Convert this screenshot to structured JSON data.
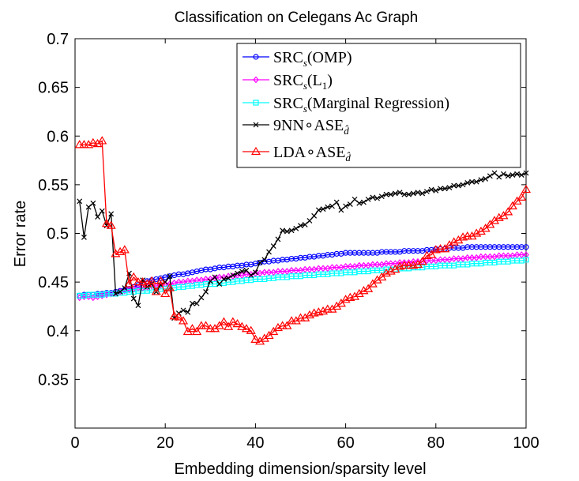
{
  "chart_data": {
    "type": "line",
    "title": "Classification on Celegans Ac Graph",
    "xlabel": "Embedding dimension/sparsity level",
    "ylabel": "Error rate",
    "xlim": [
      0,
      100
    ],
    "ylim": [
      0.3,
      0.7
    ],
    "xticks": [
      0,
      20,
      40,
      60,
      80,
      100
    ],
    "yticks": [
      0.35,
      0.4,
      0.45,
      0.5,
      0.55,
      0.6,
      0.65,
      0.7
    ],
    "x_tick_labels": [
      "0",
      "20",
      "40",
      "60",
      "80",
      "100"
    ],
    "y_tick_labels": [
      "0.35",
      "0.4",
      "0.45",
      "0.5",
      "0.55",
      "0.6",
      "0.65",
      "0.7"
    ],
    "grid": false,
    "legend_position": "top-right",
    "series": [
      {
        "name": "SRCs(OMP)",
        "legend_main": "SRC",
        "legend_sub": "s",
        "legend_rest": "(OMP)",
        "color": "#0000ff",
        "marker": "circle",
        "x": [
          1,
          2,
          3,
          4,
          5,
          6,
          7,
          8,
          9,
          10,
          11,
          12,
          13,
          14,
          15,
          16,
          17,
          18,
          19,
          20,
          21,
          22,
          23,
          24,
          25,
          26,
          27,
          28,
          29,
          30,
          31,
          32,
          33,
          34,
          35,
          36,
          37,
          38,
          39,
          40,
          41,
          42,
          43,
          44,
          45,
          46,
          47,
          48,
          49,
          50,
          51,
          52,
          53,
          54,
          55,
          56,
          57,
          58,
          59,
          60,
          61,
          62,
          63,
          64,
          65,
          66,
          67,
          68,
          69,
          70,
          71,
          72,
          73,
          74,
          75,
          76,
          77,
          78,
          79,
          80,
          81,
          82,
          83,
          84,
          85,
          86,
          87,
          88,
          89,
          90,
          91,
          92,
          93,
          94,
          95,
          96,
          97,
          98,
          99,
          100
        ],
        "y": [
          0.436,
          0.437,
          0.437,
          0.437,
          0.438,
          0.438,
          0.439,
          0.439,
          0.44,
          0.441,
          0.442,
          0.443,
          0.445,
          0.447,
          0.449,
          0.451,
          0.452,
          0.453,
          0.454,
          0.455,
          0.456,
          0.457,
          0.458,
          0.458,
          0.459,
          0.46,
          0.461,
          0.462,
          0.463,
          0.463,
          0.464,
          0.465,
          0.465,
          0.466,
          0.466,
          0.467,
          0.467,
          0.468,
          0.468,
          0.469,
          0.47,
          0.471,
          0.471,
          0.472,
          0.472,
          0.473,
          0.473,
          0.474,
          0.474,
          0.475,
          0.475,
          0.476,
          0.476,
          0.477,
          0.477,
          0.478,
          0.478,
          0.479,
          0.479,
          0.48,
          0.48,
          0.48,
          0.48,
          0.48,
          0.48,
          0.48,
          0.48,
          0.481,
          0.481,
          0.481,
          0.481,
          0.481,
          0.482,
          0.482,
          0.482,
          0.482,
          0.482,
          0.483,
          0.483,
          0.484,
          0.484,
          0.484,
          0.485,
          0.485,
          0.485,
          0.485,
          0.486,
          0.486,
          0.486,
          0.486,
          0.486,
          0.486,
          0.486,
          0.486,
          0.486,
          0.486,
          0.486,
          0.486,
          0.486,
          0.486
        ]
      },
      {
        "name": "SRCs(L1)",
        "legend_main": "SRC",
        "legend_sub": "s",
        "legend_rest": "(L",
        "legend_rest_sub": "1",
        "legend_rest_end": ")",
        "color": "#ff00ff",
        "marker": "diamond",
        "x": [
          1,
          2,
          3,
          4,
          5,
          6,
          7,
          8,
          9,
          10,
          11,
          12,
          13,
          14,
          15,
          16,
          17,
          18,
          19,
          20,
          21,
          22,
          23,
          24,
          25,
          26,
          27,
          28,
          29,
          30,
          31,
          32,
          33,
          34,
          35,
          36,
          37,
          38,
          39,
          40,
          41,
          42,
          43,
          44,
          45,
          46,
          47,
          48,
          49,
          50,
          51,
          52,
          53,
          54,
          55,
          56,
          57,
          58,
          59,
          60,
          61,
          62,
          63,
          64,
          65,
          66,
          67,
          68,
          69,
          70,
          71,
          72,
          73,
          74,
          75,
          76,
          77,
          78,
          79,
          80,
          81,
          82,
          83,
          84,
          85,
          86,
          87,
          88,
          89,
          90,
          91,
          92,
          93,
          94,
          95,
          96,
          97,
          98,
          99,
          100
        ],
        "y": [
          0.434,
          0.435,
          0.435,
          0.434,
          0.435,
          0.436,
          0.437,
          0.438,
          0.439,
          0.44,
          0.441,
          0.442,
          0.443,
          0.444,
          0.444,
          0.445,
          0.446,
          0.446,
          0.447,
          0.448,
          0.448,
          0.449,
          0.45,
          0.45,
          0.451,
          0.451,
          0.452,
          0.452,
          0.453,
          0.453,
          0.454,
          0.455,
          0.455,
          0.456,
          0.456,
          0.457,
          0.457,
          0.458,
          0.458,
          0.459,
          0.459,
          0.46,
          0.46,
          0.46,
          0.461,
          0.461,
          0.461,
          0.462,
          0.462,
          0.462,
          0.463,
          0.463,
          0.463,
          0.464,
          0.464,
          0.464,
          0.465,
          0.465,
          0.465,
          0.466,
          0.466,
          0.466,
          0.467,
          0.467,
          0.467,
          0.468,
          0.468,
          0.468,
          0.469,
          0.469,
          0.469,
          0.47,
          0.47,
          0.47,
          0.471,
          0.471,
          0.471,
          0.472,
          0.472,
          0.472,
          0.473,
          0.473,
          0.473,
          0.474,
          0.474,
          0.474,
          0.475,
          0.475,
          0.475,
          0.476,
          0.476,
          0.476,
          0.476,
          0.477,
          0.477,
          0.477,
          0.477,
          0.478,
          0.478,
          0.478
        ]
      },
      {
        "name": "SRCs(Marginal Regression)",
        "legend_main": "SRC",
        "legend_sub": "s",
        "legend_rest": "(Marginal Regression)",
        "color": "#00ffff",
        "marker": "square",
        "x": [
          1,
          2,
          3,
          4,
          5,
          6,
          7,
          8,
          9,
          10,
          11,
          12,
          13,
          14,
          15,
          16,
          17,
          18,
          19,
          20,
          21,
          22,
          23,
          24,
          25,
          26,
          27,
          28,
          29,
          30,
          31,
          32,
          33,
          34,
          35,
          36,
          37,
          38,
          39,
          40,
          41,
          42,
          43,
          44,
          45,
          46,
          47,
          48,
          49,
          50,
          51,
          52,
          53,
          54,
          55,
          56,
          57,
          58,
          59,
          60,
          61,
          62,
          63,
          64,
          65,
          66,
          67,
          68,
          69,
          70,
          71,
          72,
          73,
          74,
          75,
          76,
          77,
          78,
          79,
          80,
          81,
          82,
          83,
          84,
          85,
          86,
          87,
          88,
          89,
          90,
          91,
          92,
          93,
          94,
          95,
          96,
          97,
          98,
          99,
          100
        ],
        "y": [
          0.436,
          0.436,
          0.437,
          0.437,
          0.437,
          0.437,
          0.438,
          0.438,
          0.438,
          0.439,
          0.439,
          0.44,
          0.44,
          0.441,
          0.441,
          0.441,
          0.442,
          0.442,
          0.443,
          0.443,
          0.444,
          0.444,
          0.445,
          0.445,
          0.446,
          0.446,
          0.447,
          0.447,
          0.448,
          0.448,
          0.448,
          0.449,
          0.449,
          0.45,
          0.45,
          0.451,
          0.451,
          0.452,
          0.452,
          0.453,
          0.453,
          0.453,
          0.454,
          0.454,
          0.455,
          0.455,
          0.455,
          0.456,
          0.456,
          0.456,
          0.457,
          0.457,
          0.457,
          0.458,
          0.458,
          0.458,
          0.459,
          0.459,
          0.459,
          0.46,
          0.46,
          0.46,
          0.461,
          0.461,
          0.461,
          0.462,
          0.462,
          0.462,
          0.463,
          0.463,
          0.463,
          0.464,
          0.464,
          0.464,
          0.465,
          0.465,
          0.465,
          0.466,
          0.466,
          0.466,
          0.467,
          0.467,
          0.467,
          0.467,
          0.468,
          0.468,
          0.468,
          0.469,
          0.469,
          0.469,
          0.47,
          0.47,
          0.47,
          0.471,
          0.471,
          0.471,
          0.472,
          0.472,
          0.472,
          0.473
        ]
      },
      {
        "name": "9NN∘ASE_d̂",
        "legend_main": "9NN∘ASE",
        "legend_sub": "d̂",
        "color": "#000000",
        "marker": "x",
        "x": [
          1,
          2,
          3,
          4,
          5,
          6,
          7,
          8,
          9,
          10,
          11,
          12,
          13,
          14,
          15,
          16,
          17,
          18,
          19,
          20,
          21,
          22,
          23,
          24,
          25,
          26,
          27,
          28,
          29,
          30,
          31,
          32,
          33,
          34,
          35,
          36,
          37,
          38,
          39,
          40,
          41,
          42,
          43,
          44,
          45,
          46,
          47,
          48,
          49,
          50,
          51,
          52,
          53,
          54,
          55,
          56,
          57,
          58,
          59,
          60,
          61,
          62,
          63,
          64,
          65,
          66,
          67,
          68,
          69,
          70,
          71,
          72,
          73,
          74,
          75,
          76,
          77,
          78,
          79,
          80,
          81,
          82,
          83,
          84,
          85,
          86,
          87,
          88,
          89,
          90,
          91,
          92,
          93,
          94,
          95,
          96,
          97,
          98,
          99,
          100
        ],
        "y": [
          0.533,
          0.496,
          0.527,
          0.531,
          0.517,
          0.523,
          0.508,
          0.52,
          0.438,
          0.44,
          0.444,
          0.459,
          0.433,
          0.426,
          0.452,
          0.445,
          0.448,
          0.44,
          0.447,
          0.45,
          0.456,
          0.413,
          0.418,
          0.421,
          0.419,
          0.428,
          0.428,
          0.434,
          0.44,
          0.451,
          0.455,
          0.448,
          0.453,
          0.454,
          0.457,
          0.459,
          0.461,
          0.462,
          0.457,
          0.46,
          0.47,
          0.473,
          0.481,
          0.487,
          0.494,
          0.503,
          0.502,
          0.503,
          0.505,
          0.508,
          0.509,
          0.513,
          0.518,
          0.524,
          0.525,
          0.527,
          0.528,
          0.532,
          0.524,
          0.528,
          0.53,
          0.535,
          0.531,
          0.532,
          0.535,
          0.537,
          0.536,
          0.538,
          0.54,
          0.54,
          0.541,
          0.542,
          0.54,
          0.54,
          0.541,
          0.542,
          0.541,
          0.543,
          0.545,
          0.544,
          0.546,
          0.546,
          0.547,
          0.549,
          0.549,
          0.55,
          0.552,
          0.553,
          0.553,
          0.555,
          0.556,
          0.559,
          0.562,
          0.558,
          0.561,
          0.559,
          0.56,
          0.561,
          0.56,
          0.562
        ]
      },
      {
        "name": "LDA∘ASE_d̂",
        "legend_main": "LDA∘ASE",
        "legend_sub": "d̂",
        "color": "#ff0000",
        "marker": "triangle",
        "x": [
          1,
          2,
          3,
          4,
          5,
          6,
          7,
          8,
          9,
          10,
          11,
          12,
          13,
          14,
          15,
          16,
          17,
          18,
          19,
          20,
          21,
          22,
          23,
          24,
          25,
          26,
          27,
          28,
          29,
          30,
          31,
          32,
          33,
          34,
          35,
          36,
          37,
          38,
          39,
          40,
          41,
          42,
          43,
          44,
          45,
          46,
          47,
          48,
          49,
          50,
          51,
          52,
          53,
          54,
          55,
          56,
          57,
          58,
          59,
          60,
          61,
          62,
          63,
          64,
          65,
          66,
          67,
          68,
          69,
          70,
          71,
          72,
          73,
          74,
          75,
          76,
          77,
          78,
          79,
          80,
          81,
          82,
          83,
          84,
          85,
          86,
          87,
          88,
          89,
          90,
          91,
          92,
          93,
          94,
          95,
          96,
          97,
          98,
          99,
          100
        ],
        "y": [
          0.591,
          0.591,
          0.591,
          0.593,
          0.592,
          0.595,
          0.51,
          0.508,
          0.479,
          0.481,
          0.483,
          0.448,
          0.455,
          0.45,
          0.45,
          0.448,
          0.451,
          0.44,
          0.451,
          0.438,
          0.444,
          0.415,
          0.414,
          0.41,
          0.399,
          0.402,
          0.399,
          0.405,
          0.405,
          0.402,
          0.402,
          0.405,
          0.409,
          0.404,
          0.409,
          0.407,
          0.404,
          0.402,
          0.4,
          0.391,
          0.389,
          0.392,
          0.395,
          0.399,
          0.403,
          0.405,
          0.405,
          0.41,
          0.41,
          0.413,
          0.413,
          0.416,
          0.418,
          0.419,
          0.42,
          0.422,
          0.422,
          0.425,
          0.428,
          0.432,
          0.434,
          0.435,
          0.438,
          0.441,
          0.443,
          0.448,
          0.452,
          0.455,
          0.459,
          0.461,
          0.463,
          0.466,
          0.467,
          0.467,
          0.467,
          0.468,
          0.471,
          0.477,
          0.478,
          0.483,
          0.484,
          0.484,
          0.488,
          0.491,
          0.493,
          0.496,
          0.497,
          0.497,
          0.5,
          0.502,
          0.505,
          0.509,
          0.513,
          0.516,
          0.518,
          0.522,
          0.528,
          0.533,
          0.537,
          0.545
        ]
      }
    ]
  }
}
